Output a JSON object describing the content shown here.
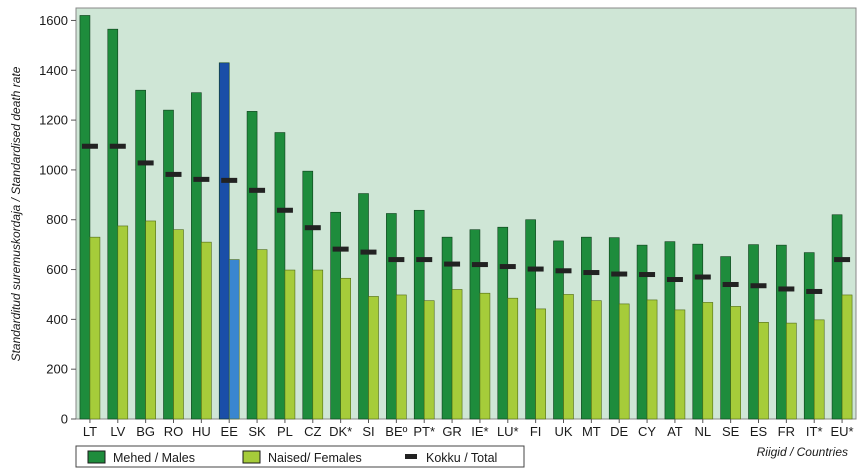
{
  "chart_data": {
    "type": "bar",
    "ylabel": "Standarditud suremuskordaja / Standardised death rate",
    "xlabel": "Riigid / Countries",
    "ylim": [
      0,
      1650
    ],
    "yticks": [
      0,
      200,
      400,
      600,
      800,
      1000,
      1200,
      1400,
      1600
    ],
    "grid": false,
    "legend_position": "bottom",
    "highlight_category": "EE",
    "categories": [
      "LT",
      "LV",
      "BG",
      "RO",
      "HU",
      "EE",
      "SK",
      "PL",
      "CZ",
      "DK*",
      "SI",
      "BEº",
      "PT*",
      "GR",
      "IE*",
      "LU*",
      "FI",
      "UK",
      "MT",
      "DE",
      "CY",
      "AT",
      "NL",
      "SE",
      "ES",
      "FR",
      "IT*",
      "EU*"
    ],
    "series": [
      {
        "name": "Mehed / Males",
        "type": "bar",
        "color": "#1e8c3c",
        "values": [
          1620,
          1565,
          1320,
          1240,
          1310,
          1430,
          1235,
          1150,
          995,
          830,
          905,
          825,
          838,
          730,
          760,
          770,
          800,
          715,
          730,
          728,
          698,
          712,
          702,
          652,
          700,
          698,
          668,
          820
        ]
      },
      {
        "name": "Naised/ Females",
        "type": "bar",
        "color": "#a6cc3a",
        "values": [
          730,
          775,
          795,
          760,
          710,
          640,
          680,
          598,
          598,
          565,
          492,
          498,
          475,
          520,
          505,
          485,
          442,
          500,
          475,
          462,
          478,
          438,
          468,
          452,
          388,
          385,
          398,
          498
        ]
      },
      {
        "name": "Kokku / Total",
        "type": "marker",
        "color": "#222222",
        "values": [
          1095,
          1095,
          1028,
          982,
          962,
          958,
          918,
          838,
          768,
          682,
          670,
          640,
          640,
          622,
          620,
          612,
          602,
          595,
          588,
          582,
          580,
          560,
          570,
          540,
          535,
          522,
          512,
          640
        ]
      }
    ],
    "highlight_colors": {
      "Mehed / Males": "#1a4ea8",
      "Naised/ Females": "#3a86d0"
    },
    "plot_background": "#cfe6d6"
  },
  "legend": {
    "males": "Mehed / Males",
    "females": "Naised/ Females",
    "total": "Kokku / Total"
  }
}
